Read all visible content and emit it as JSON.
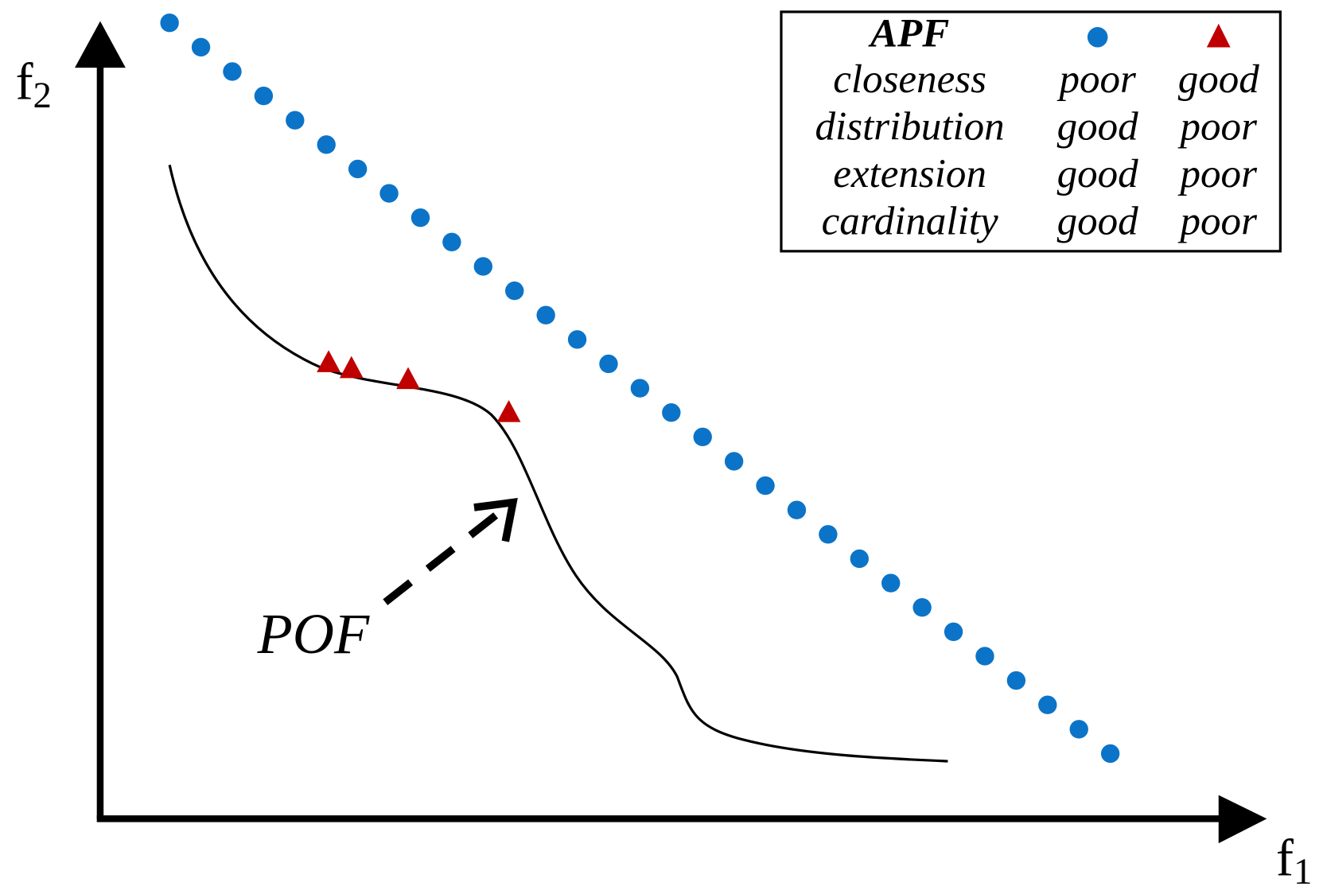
{
  "axes": {
    "x_label": {
      "base": "f",
      "sub": "1"
    },
    "y_label": {
      "base": "f",
      "sub": "2"
    }
  },
  "legend": {
    "header": "APF",
    "rows": [
      [
        "closeness",
        "poor",
        "good"
      ],
      [
        "distribution",
        "good",
        "poor"
      ],
      [
        "extension",
        "good",
        "poor"
      ],
      [
        "cardinality",
        "good",
        "poor"
      ]
    ]
  },
  "annotation": "POF"
}
